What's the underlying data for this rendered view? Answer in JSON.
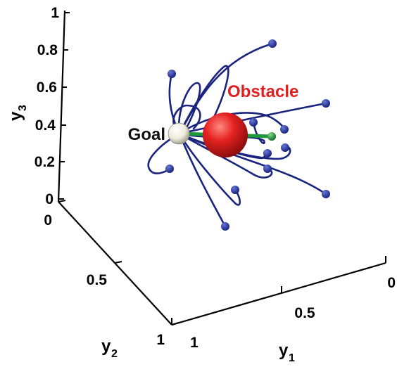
{
  "chart_data": {
    "type": "line",
    "view": "3d",
    "axes": {
      "y3": {
        "label": "y",
        "subscript": "3",
        "range": [
          0,
          1
        ],
        "ticks": [
          "0",
          "0.2",
          "0.4",
          "0.6",
          "0.8",
          "1"
        ]
      },
      "y2": {
        "label": "y",
        "subscript": "2",
        "range": [
          0,
          1
        ],
        "ticks": [
          "0",
          "0.5",
          "1"
        ]
      },
      "y1": {
        "label": "y",
        "subscript": "1",
        "range": [
          0,
          1
        ],
        "ticks": [
          "1",
          "0.5",
          "0"
        ]
      }
    },
    "grid": false,
    "annotations": {
      "goal": "Goal",
      "obstacle": "Obstacle"
    },
    "colors": {
      "trajectory": "#1a237e",
      "endpoint": "#2b3aa0",
      "goal_sphere": "#f2f2ea",
      "obstacle_sphere": "#e02020",
      "obstacle_label": "#e02020",
      "direction_vector": "#1e9a3a"
    }
  }
}
